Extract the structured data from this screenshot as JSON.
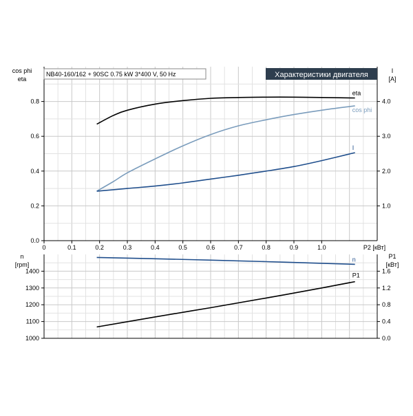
{
  "header": {
    "model_text": "NB40-160/162 + 90SC  0.75 kW  3*400 V, 50 Hz",
    "title": "Характеристики двигателя",
    "title_bg": "#2e3e4e"
  },
  "chart_data": [
    {
      "type": "line",
      "id": "top",
      "xlabel": "P2 [кВт]",
      "ylabel_left": [
        "cos phi",
        "eta"
      ],
      "ylabel_right": [
        "I",
        "[A]"
      ],
      "x_ticks": [
        0,
        0.1,
        0.2,
        0.3,
        0.4,
        0.5,
        0.6,
        0.7,
        0.8,
        0.9,
        1.0
      ],
      "x_tick_labels": [
        "0",
        "0.1",
        "0.2",
        "0.3",
        "0.4",
        "0.5",
        "0.6",
        "0.7",
        "0.8",
        "0.9",
        "1.0"
      ],
      "xlim": [
        0,
        1.2
      ],
      "ylim_left": [
        0,
        1.0
      ],
      "y_ticks_left": [
        0,
        0.2,
        0.4,
        0.6,
        0.8
      ],
      "y_tick_labels_left": [
        "0.0",
        "0.2",
        "0.4",
        "0.6",
        "0.8"
      ],
      "ylim_right": [
        0,
        5.0
      ],
      "y_ticks_right": [
        1.0,
        2.0,
        3.0,
        4.0
      ],
      "y_tick_labels_right": [
        "1.0",
        "2.0",
        "3.0",
        "4.0"
      ],
      "grid": true,
      "series": [
        {
          "name": "eta",
          "axis": "left",
          "color": "#000000",
          "x": [
            0.19,
            0.25,
            0.3,
            0.4,
            0.5,
            0.6,
            0.7,
            0.8,
            0.9,
            1.0,
            1.12
          ],
          "y": [
            0.67,
            0.72,
            0.75,
            0.785,
            0.805,
            0.818,
            0.823,
            0.825,
            0.825,
            0.823,
            0.82
          ]
        },
        {
          "name": "cos phi",
          "axis": "left",
          "color": "#7a9cbc",
          "x": [
            0.19,
            0.25,
            0.3,
            0.4,
            0.5,
            0.6,
            0.7,
            0.8,
            0.9,
            1.0,
            1.12
          ],
          "y": [
            0.285,
            0.34,
            0.39,
            0.47,
            0.545,
            0.61,
            0.66,
            0.695,
            0.725,
            0.75,
            0.775
          ]
        },
        {
          "name": "I",
          "axis": "right",
          "color": "#1f4e8c",
          "x": [
            0.19,
            0.3,
            0.4,
            0.5,
            0.6,
            0.7,
            0.8,
            0.9,
            1.0,
            1.12
          ],
          "y": [
            1.42,
            1.5,
            1.57,
            1.66,
            1.77,
            1.88,
            2.0,
            2.13,
            2.3,
            2.53
          ]
        }
      ]
    },
    {
      "type": "line",
      "id": "bottom",
      "ylabel_left": [
        "n",
        "[rpm]"
      ],
      "ylabel_right": [
        "P1",
        "[кВт]"
      ],
      "xlim": [
        0,
        1.2
      ],
      "ylim_left": [
        1000,
        1500
      ],
      "y_ticks_left": [
        1000,
        1100,
        1200,
        1300,
        1400
      ],
      "y_tick_labels_left": [
        "1000",
        "1100",
        "1200",
        "1300",
        "1400"
      ],
      "ylim_right": [
        0,
        2.0
      ],
      "y_ticks_right": [
        0,
        0.4,
        0.8,
        1.2,
        1.6
      ],
      "y_tick_labels_right": [
        "0.0",
        "0.4",
        "0.8",
        "1.2",
        "1.6"
      ],
      "grid": true,
      "series": [
        {
          "name": "n",
          "axis": "left",
          "color": "#1f4e8c",
          "x": [
            0.19,
            0.4,
            0.6,
            0.8,
            1.0,
            1.12
          ],
          "y": [
            1482,
            1474,
            1466,
            1457,
            1447,
            1441
          ]
        },
        {
          "name": "P1",
          "axis": "right",
          "color": "#000000",
          "x": [
            0.19,
            0.4,
            0.6,
            0.8,
            1.0,
            1.12
          ],
          "y": [
            0.27,
            0.51,
            0.73,
            0.96,
            1.2,
            1.35
          ]
        }
      ]
    }
  ]
}
